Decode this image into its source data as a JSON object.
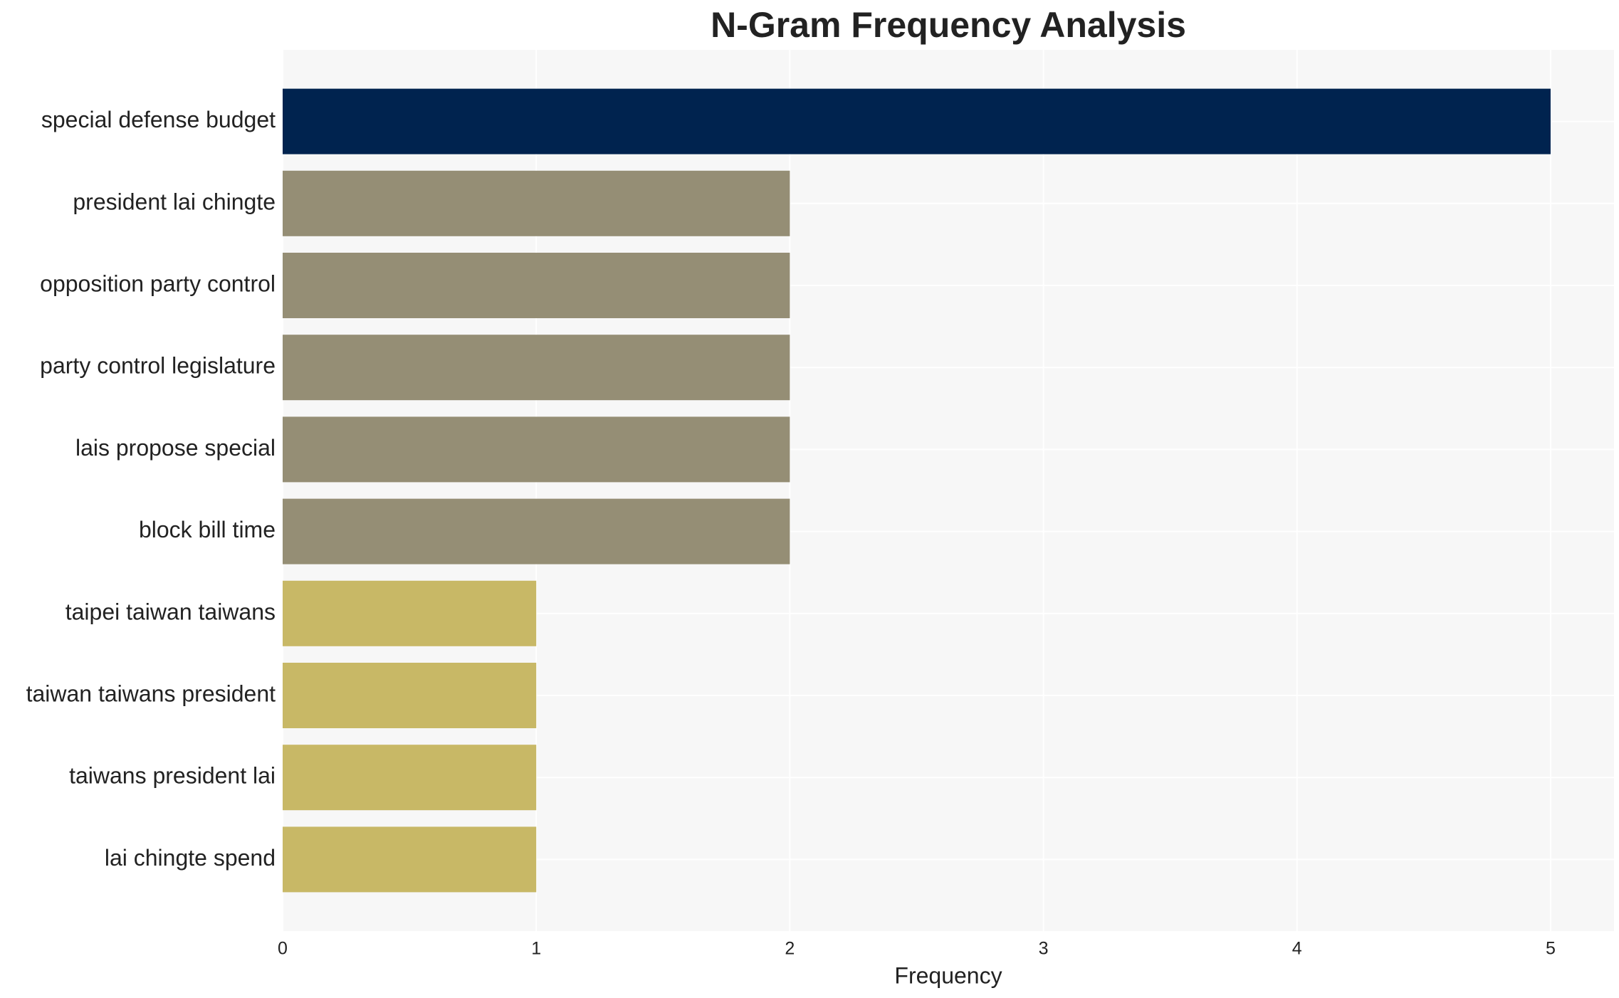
{
  "chart_data": {
    "type": "hbar",
    "title": "N-Gram Frequency Analysis",
    "x_label": "Frequency",
    "categories": [
      "special defense budget",
      "president lai chingte",
      "opposition party control",
      "party control legislature",
      "lais propose special",
      "block bill time",
      "taipei taiwan taiwans",
      "taiwan taiwans president",
      "taiwans president lai",
      "lai chingte spend"
    ],
    "values": [
      5,
      2,
      2,
      2,
      2,
      2,
      1,
      1,
      1,
      1
    ],
    "colors": [
      "#00234f",
      "#958e75",
      "#958e75",
      "#958e75",
      "#958e75",
      "#958e75",
      "#c8b866",
      "#c8b866",
      "#c8b866",
      "#c8b866"
    ],
    "xlim": [
      0,
      5.25
    ],
    "xticks": [
      0,
      1,
      2,
      3,
      4,
      5
    ],
    "grid": true
  }
}
